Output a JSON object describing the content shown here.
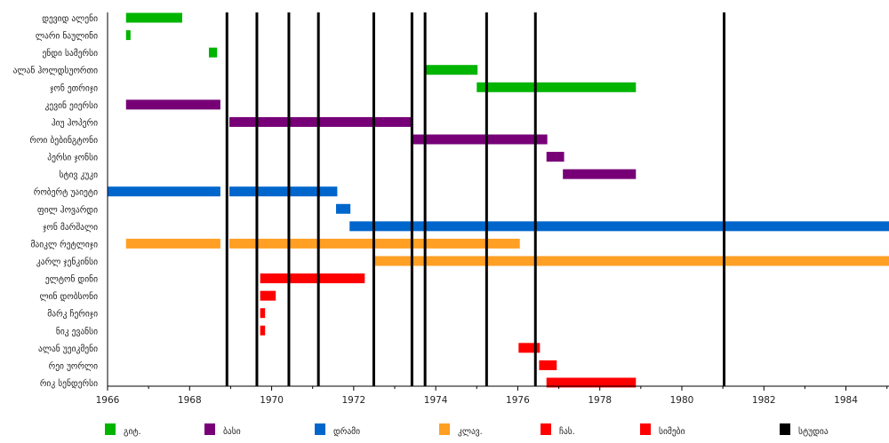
{
  "chart_data": {
    "type": "timeline",
    "title": "",
    "xlim": [
      1966,
      1985.05
    ],
    "x_ticks": [
      1966,
      1968,
      1970,
      1972,
      1974,
      1976,
      1978,
      1980,
      1982,
      1984
    ],
    "colors": {
      "guitar": "#00b400",
      "bass": "#770077",
      "drums": "#0066cc",
      "keys": "#ff9f24",
      "sax": "#ff0000",
      "strings": "#ff0000",
      "studio": "#000000"
    },
    "legend": [
      {
        "key": "guitar",
        "label": "გიტ."
      },
      {
        "key": "bass",
        "label": "ბასი"
      },
      {
        "key": "drums",
        "label": "დრამი"
      },
      {
        "key": "keys",
        "label": "კლავ."
      },
      {
        "key": "sax",
        "label": "ჩას."
      },
      {
        "key": "strings",
        "label": "სიმები"
      },
      {
        "key": "studio",
        "label": "სტუდია"
      }
    ],
    "members": [
      {
        "name": "დევიდ ალენი",
        "role": "guitar",
        "periods": [
          [
            1966.45,
            1967.82
          ]
        ]
      },
      {
        "name": "ლარი ნაულინი",
        "role": "guitar",
        "periods": [
          [
            1966.45,
            1966.56
          ]
        ]
      },
      {
        "name": "ენდი სამერსი",
        "role": "guitar",
        "periods": [
          [
            1968.47,
            1968.67
          ]
        ]
      },
      {
        "name": "ალან ჰოლდსუორთი",
        "role": "guitar",
        "periods": [
          [
            1973.74,
            1975.02
          ]
        ]
      },
      {
        "name": "ჯონ ეთრიჯი",
        "role": "guitar",
        "periods": [
          [
            1975.0,
            1978.88
          ]
        ]
      },
      {
        "name": "კევინ ეიერსი",
        "role": "bass",
        "periods": [
          [
            1966.45,
            1968.75
          ]
        ]
      },
      {
        "name": "ჰიუ ჰოპერი",
        "role": "bass",
        "periods": [
          [
            1968.97,
            1973.44
          ]
        ]
      },
      {
        "name": "როი ბებინგტონი",
        "role": "bass",
        "periods": [
          [
            1973.42,
            1976.72
          ]
        ]
      },
      {
        "name": "პერსი ჯონსი",
        "role": "bass",
        "periods": [
          [
            1976.7,
            1977.13
          ]
        ]
      },
      {
        "name": "სტივ კუკი",
        "role": "bass",
        "periods": [
          [
            1977.1,
            1978.88
          ]
        ]
      },
      {
        "name": "რობერტ უაიეტი",
        "role": "drums",
        "periods": [
          [
            1966.0,
            1968.75
          ],
          [
            1968.97,
            1971.6
          ]
        ]
      },
      {
        "name": "ფილ ჰოვარდი",
        "role": "drums",
        "periods": [
          [
            1971.57,
            1971.92
          ]
        ]
      },
      {
        "name": "ჯონ მარშალი",
        "role": "drums",
        "periods": [
          [
            1971.9,
            1985.05
          ]
        ]
      },
      {
        "name": "მაიკლ რეტლიჯი",
        "role": "keys",
        "periods": [
          [
            1966.45,
            1968.75
          ],
          [
            1968.97,
            1976.05
          ]
        ]
      },
      {
        "name": "კარლ ჯენკინსი",
        "role": "keys",
        "periods": [
          [
            1972.48,
            1985.05
          ]
        ]
      },
      {
        "name": "ელტონ დინი",
        "role": "sax",
        "periods": [
          [
            1969.72,
            1972.27
          ]
        ]
      },
      {
        "name": "ლინ დობსონი",
        "role": "sax",
        "periods": [
          [
            1969.72,
            1970.1
          ]
        ]
      },
      {
        "name": "მარკ ჩერიჯი",
        "role": "sax",
        "periods": [
          [
            1969.72,
            1969.84
          ]
        ]
      },
      {
        "name": "ნიკ ევანსი",
        "role": "sax",
        "periods": [
          [
            1969.72,
            1969.84
          ]
        ]
      },
      {
        "name": "ალან უეიკმენი",
        "role": "sax",
        "periods": [
          [
            1976.02,
            1976.54
          ]
        ]
      },
      {
        "name": "რეი უორლი",
        "role": "sax",
        "periods": [
          [
            1976.52,
            1976.95
          ]
        ]
      },
      {
        "name": "რიკ სენდერსი",
        "role": "strings",
        "periods": [
          [
            1976.7,
            1978.88
          ]
        ]
      }
    ],
    "studio_albums": [
      1968.91,
      1969.64,
      1970.42,
      1971.14,
      1972.49,
      1973.42,
      1973.74,
      1975.24,
      1976.43,
      1981.03
    ]
  }
}
